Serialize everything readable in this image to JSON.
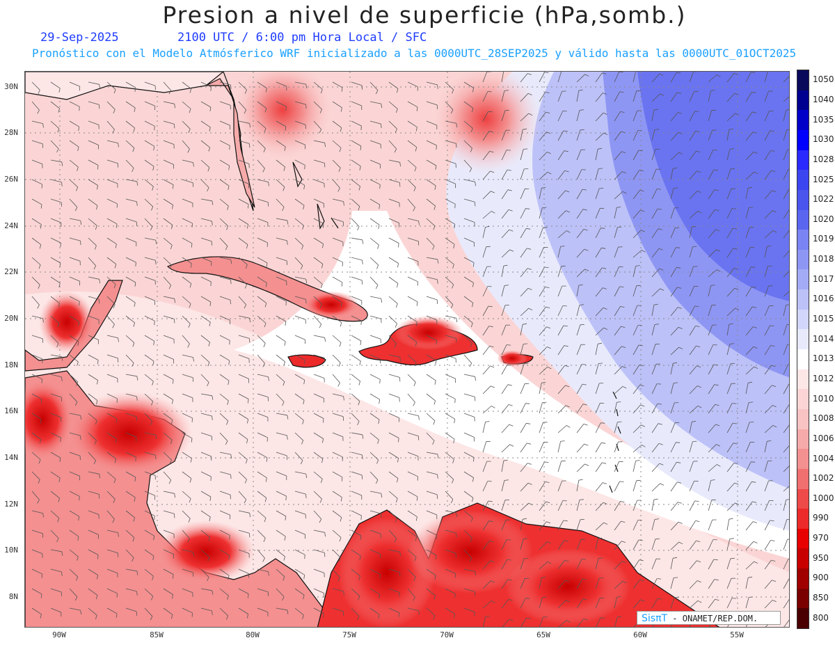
{
  "header": {
    "title": "Presion a nivel de superficie (hPa,somb.)",
    "date": "29-Sep-2025",
    "time": "2100 UTC / 6:00 pm Hora Local / SFC",
    "model_line": "Pronóstico con el Modelo Atmósferico WRF inicializado a las 0000UTC_28SEP2025 y válido hasta las 0000UTC_01OCT2025"
  },
  "map": {
    "lat_labels": [
      "30N",
      "28N",
      "26N",
      "24N",
      "22N",
      "20N",
      "18N",
      "16N",
      "14N",
      "12N",
      "10N",
      "8N"
    ],
    "lon_labels": [
      "90W",
      "85W",
      "80W",
      "75W",
      "70W",
      "65W",
      "60W",
      "55W"
    ]
  },
  "colorbar": {
    "labels": [
      "1050",
      "1040",
      "1035",
      "1030",
      "1028",
      "1025",
      "1022",
      "1020",
      "1019",
      "1018",
      "1017",
      "1016",
      "1015",
      "1014",
      "1013",
      "1012",
      "1010",
      "1008",
      "1006",
      "1004",
      "1002",
      "1000",
      "990",
      "970",
      "950",
      "900",
      "850",
      "800"
    ],
    "colors": [
      "#0a0a5a",
      "#000090",
      "#0000c8",
      "#0000ff",
      "#2a2aff",
      "#3c46f0",
      "#4a55ee",
      "#5a66f0",
      "#7a84f2",
      "#8e96f4",
      "#a4abf6",
      "#bcc1f8",
      "#d2d6fa",
      "#e8eafc",
      "#ffffff",
      "#fde6e6",
      "#fbd5d5",
      "#f9c3c3",
      "#f6aaaa",
      "#f39090",
      "#f07070",
      "#ee4a4a",
      "#ec2a2a",
      "#e80000",
      "#c80000",
      "#a00000",
      "#7a0000",
      "#4a0000"
    ]
  },
  "credit": {
    "logo": "SisπT",
    "text": "- ONAMET/REP.DOM."
  }
}
